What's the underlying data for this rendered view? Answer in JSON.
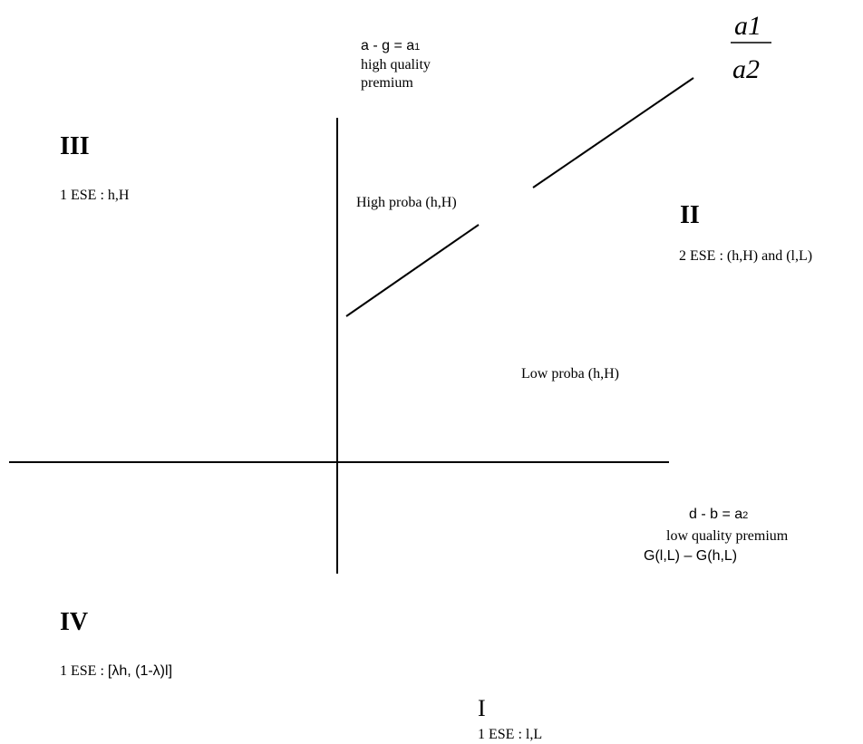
{
  "axes": {
    "vertical": {
      "line1": "a - g = a",
      "line1_sub": "1",
      "line2": "high quality",
      "line3": "premium"
    },
    "horizontal": {
      "line1": "d - b = a",
      "line1_sub": "2",
      "line2": "low quality premium",
      "line3": "G(l,L) – G(h,L)"
    }
  },
  "ratio": {
    "numerator": "a1",
    "denominator": "a2"
  },
  "regions": {
    "III": {
      "numeral": "III",
      "text": "1 ESE : h,H"
    },
    "II": {
      "numeral": "II",
      "text": "2 ESE : (h,H) and (l,L)"
    },
    "IV": {
      "numeral": "IV",
      "text_prefix": "1 ESE : ",
      "text_rest": "[λh, (1-λ)l]"
    },
    "I": {
      "numeral": "I",
      "text": "1 ESE : l,L"
    }
  },
  "zones": {
    "high": "High proba (h,H)",
    "low": "Low proba (h,H)"
  }
}
